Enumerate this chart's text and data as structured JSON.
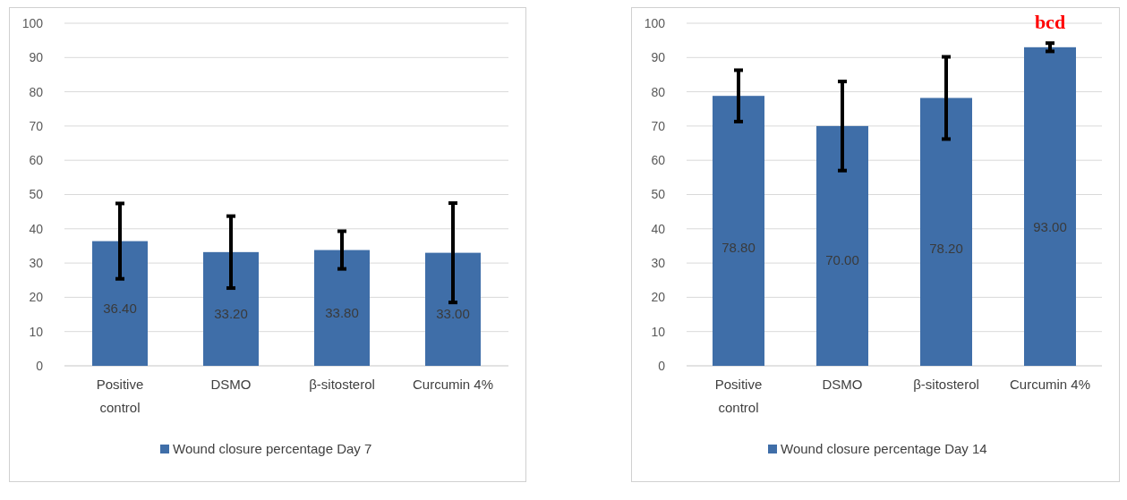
{
  "chart_data": [
    {
      "type": "bar",
      "categories": [
        "Positive control",
        "DSMO",
        "β-sitosterol",
        "Curcumin 4%"
      ],
      "series": [
        {
          "name": "Wound closure percentage Day 7",
          "color": "#3f6ea8",
          "values": [
            36.4,
            33.2,
            33.8,
            33.0
          ],
          "errors": [
            11,
            10.5,
            5.5,
            14.5
          ],
          "value_labels": [
            "36.40",
            "33.20",
            "33.80",
            "33.00"
          ]
        }
      ],
      "ylim": [
        0,
        100
      ],
      "yticks": [
        0,
        10,
        20,
        30,
        40,
        50,
        60,
        70,
        80,
        90,
        100
      ],
      "grid": "y",
      "legend": "bottom"
    },
    {
      "type": "bar",
      "categories": [
        "Positive control",
        "DSMO",
        "β-sitosterol",
        "Curcumin 4%"
      ],
      "series": [
        {
          "name": "Wound closure percentage Day 14",
          "color": "#3f6ea8",
          "values": [
            78.8,
            70.0,
            78.2,
            93.0
          ],
          "errors": [
            7.5,
            13,
            12,
            1.2
          ],
          "value_labels": [
            "78.80",
            "70.00",
            "78.20",
            "93.00"
          ]
        }
      ],
      "ylim": [
        0,
        100
      ],
      "yticks": [
        0,
        10,
        20,
        30,
        40,
        50,
        60,
        70,
        80,
        90,
        100
      ],
      "grid": "y",
      "legend": "bottom",
      "annotations": [
        "bcd"
      ]
    }
  ]
}
